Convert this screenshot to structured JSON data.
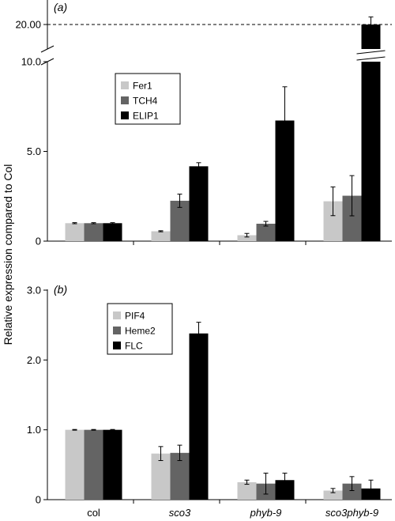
{
  "y_axis_label": "Relative expression compared to Col",
  "categories": [
    {
      "label": "col",
      "italic": false
    },
    {
      "label": "sco3",
      "italic": true
    },
    {
      "label": "phyb-9",
      "italic": true
    },
    {
      "label": "sco3phyb-9",
      "italic": true
    }
  ],
  "colors": [
    "#c8c8c8",
    "#646464",
    "#000000"
  ],
  "chart_data": [
    {
      "type": "bar",
      "panel_label": "(a)",
      "series": [
        {
          "name": "Fer1",
          "values": [
            1.0,
            0.55,
            0.33,
            2.22
          ],
          "errors": [
            0.03,
            0.03,
            0.1,
            0.8
          ]
        },
        {
          "name": "TCH4",
          "values": [
            1.0,
            2.25,
            0.97,
            2.53
          ],
          "errors": [
            0.03,
            0.37,
            0.13,
            1.12
          ]
        },
        {
          "name": "ELIP1",
          "values": [
            1.0,
            4.17,
            6.72,
            20.0
          ],
          "errors": [
            0.03,
            0.2,
            1.88,
            1.2
          ]
        }
      ],
      "ylim": [
        0,
        10
      ],
      "y_break": [
        10,
        20
      ],
      "yticks": [
        0,
        5,
        10
      ],
      "ytick_labels": [
        "0",
        "5.0",
        "10.0"
      ],
      "upper_tick_label": "20.00",
      "reference_line": 20,
      "legend_position": "upper-left"
    },
    {
      "type": "bar",
      "panel_label": "(b)",
      "series": [
        {
          "name": "PIF4",
          "values": [
            1.0,
            0.66,
            0.25,
            0.13
          ],
          "errors": [
            0.005,
            0.1,
            0.03,
            0.03
          ]
        },
        {
          "name": "Heme2",
          "values": [
            1.0,
            0.67,
            0.23,
            0.23
          ],
          "errors": [
            0.005,
            0.11,
            0.15,
            0.1
          ]
        },
        {
          "name": "FLC",
          "values": [
            1.0,
            2.38,
            0.28,
            0.16
          ],
          "errors": [
            0.005,
            0.16,
            0.1,
            0.12
          ]
        }
      ],
      "ylim": [
        0,
        3
      ],
      "yticks": [
        0,
        1,
        2,
        3
      ],
      "ytick_labels": [
        "0",
        "1.0",
        "2.0",
        "3.0"
      ],
      "legend_position": "upper-left"
    }
  ]
}
